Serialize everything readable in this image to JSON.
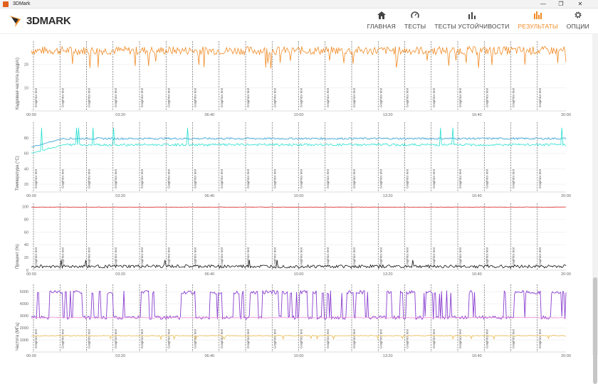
{
  "window": {
    "title": "3DMark",
    "controls": [
      "—",
      "❐",
      "✕"
    ]
  },
  "app": {
    "logo_text": "3DMARK",
    "brand_color": "#f08a24"
  },
  "nav": {
    "items": [
      {
        "label": "ГЛАВНАЯ",
        "icon": "home-icon"
      },
      {
        "label": "ТЕСТЫ",
        "icon": "gauge-icon"
      },
      {
        "label": "ТЕСТЫ УСТОЙЧИВОСТИ",
        "icon": "bars-icon"
      },
      {
        "label": "РЕЗУЛЬТАТЫ",
        "icon": "results-bars-icon",
        "active": true
      },
      {
        "label": "ОПЦИИ",
        "icon": "gear-icon"
      }
    ]
  },
  "chart_data": [
    {
      "type": "line",
      "ylabel": "Кадровая частота (кадр/с)",
      "yticks": [
        "20",
        "10"
      ],
      "ylim": [
        0,
        30
      ],
      "xticks": [
        "00:00",
        "03:20",
        "06:40",
        "10:00",
        "13:20",
        "16:40",
        "20:00"
      ],
      "xlim": [
        0,
        20
      ],
      "marker_label": "Graphics test",
      "marker_count": 20,
      "series": [
        {
          "color": "#f08a24",
          "mean": 26,
          "amp": 1.8,
          "dip": 6
        }
      ]
    },
    {
      "type": "line",
      "ylabel": "Температура (°C)",
      "yticks": [
        "80",
        "60",
        "40",
        "20"
      ],
      "ylim": [
        10,
        100
      ],
      "xticks": [
        "00:00",
        "03:20",
        "06:40",
        "10:00",
        "13:20",
        "16:40",
        "20:00"
      ],
      "xlim": [
        0,
        20
      ],
      "marker_label": "Graphics test",
      "marker_count": 20,
      "series": [
        {
          "color": "#2e9fd6",
          "mean": 79,
          "amp": 1.2,
          "start": 68
        },
        {
          "color": "#27e0cf",
          "mean": 71,
          "amp": 1.5,
          "start": 60,
          "spike": 93
        }
      ]
    },
    {
      "type": "line",
      "ylabel": "Процент (%)",
      "yticks": [
        "100",
        "80",
        "60",
        "40",
        "20",
        "0"
      ],
      "ylim": [
        0,
        105
      ],
      "xticks": [
        "00:00",
        "03:20",
        "06:40",
        "10:00",
        "13:20",
        "16:40",
        "20:00"
      ],
      "xlim": [
        0,
        20
      ],
      "marker_label": "Graphics test",
      "marker_count": 20,
      "series": [
        {
          "color": "#e03030",
          "mean": 99,
          "amp": 0.4
        },
        {
          "color": "#111111",
          "mean": 6,
          "amp": 2.5,
          "spike": 16
        }
      ]
    },
    {
      "type": "line",
      "ylabel": "Частота (МГц)",
      "yticks": [
        "5000",
        "4000",
        "3000",
        "2000",
        "1000"
      ],
      "ylim": [
        0,
        5600
      ],
      "xticks": [
        "00:00",
        "03:20",
        "06:40",
        "10:00",
        "13:20",
        "16:40",
        "20:00"
      ],
      "xlim": [
        0,
        20
      ],
      "marker_label": "Graphics test",
      "marker_count": 20,
      "series": [
        {
          "color": "#8a3fd0",
          "mean": 3900,
          "amp": 1200,
          "mode": "square"
        },
        {
          "color": "#e98bd8",
          "mean": 2850,
          "amp": 40
        },
        {
          "color": "#e8b64a",
          "mean": 1350,
          "amp": 30,
          "dip": 250
        }
      ]
    }
  ]
}
